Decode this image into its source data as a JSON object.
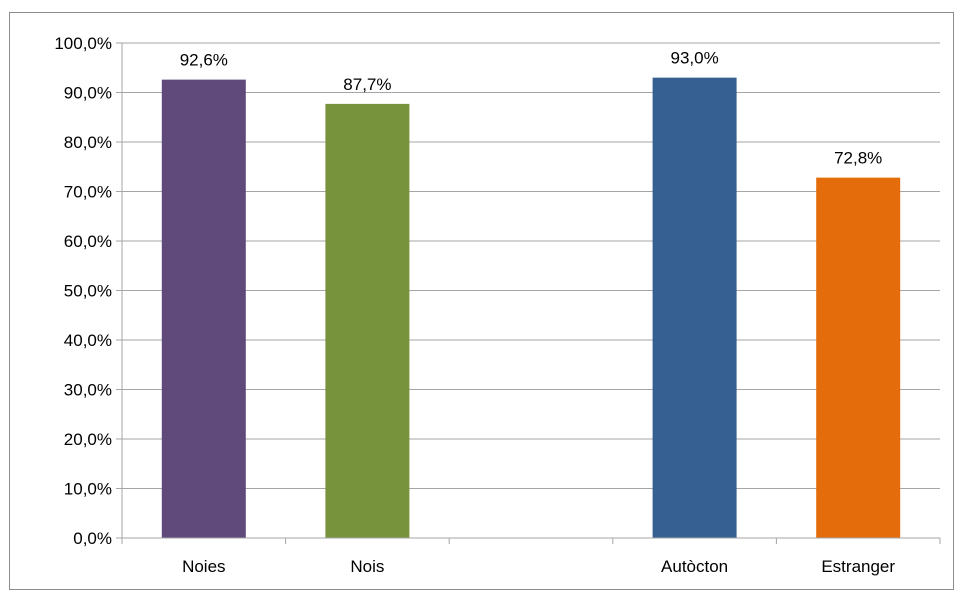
{
  "chart_data": {
    "type": "bar",
    "categories": [
      "Noies",
      "Nois",
      "",
      "Autòcton",
      "Estranger"
    ],
    "values": [
      92.6,
      87.7,
      null,
      93.0,
      72.8
    ],
    "data_labels": [
      "92,6%",
      "87,7%",
      "",
      "93,0%",
      "72,8%"
    ],
    "colors": [
      "#604a7b",
      "#77933c",
      null,
      "#366092",
      "#e46c0a"
    ],
    "title": "",
    "xlabel": "",
    "ylabel": "",
    "ylim": [
      0,
      100
    ],
    "yticks": [
      0,
      10,
      20,
      30,
      40,
      50,
      60,
      70,
      80,
      90,
      100
    ],
    "ytick_labels": [
      "0,0%",
      "10,0%",
      "20,0%",
      "30,0%",
      "40,0%",
      "50,0%",
      "60,0%",
      "70,0%",
      "80,0%",
      "90,0%",
      "100,0%"
    ],
    "grid": true,
    "legend": "none",
    "gridline_color": "#a6a6a6"
  }
}
